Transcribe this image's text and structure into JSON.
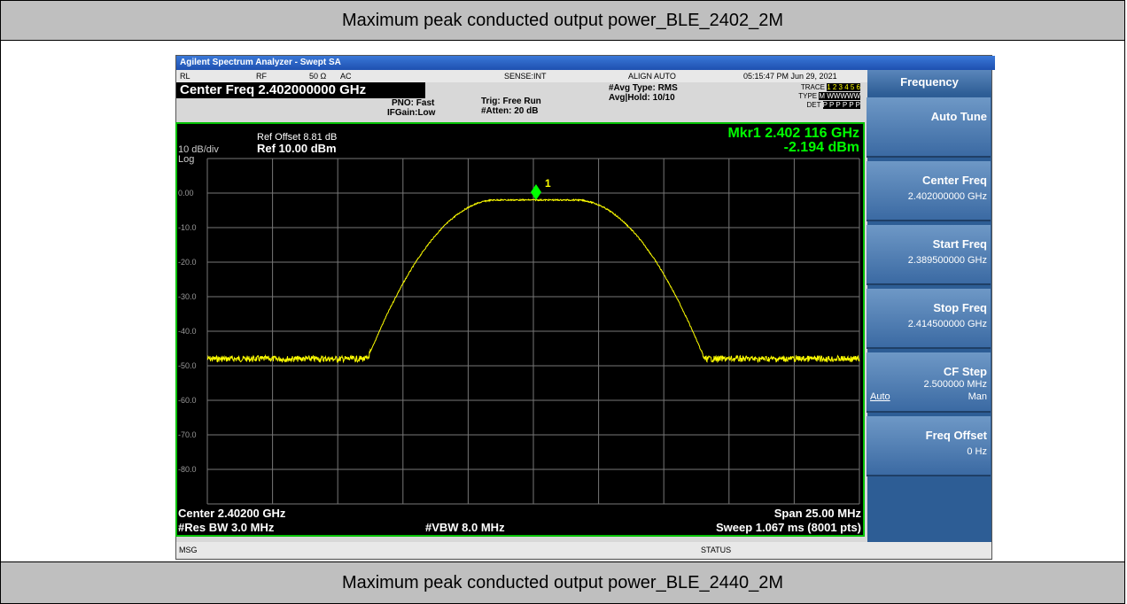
{
  "document": {
    "header": "Maximum peak conducted output power_BLE_2402_2M",
    "footer": "Maximum peak conducted output power_BLE_2440_2M",
    "analyzer": {
      "title_bar": "Agilent Spectrum Analyzer - Swept SA",
      "status_row": [
        "RL",
        "RF",
        "50 Ω",
        "AC",
        "SENSE:INT",
        "ALIGN AUTO",
        "05:15:47 PM Jun 29, 2021"
      ],
      "center_freq": "Center Freq 2.402000000 GHz",
      "pno": "PNO: Fast",
      "ifgain": "IFGain:Low",
      "trig": "Trig: Free Run",
      "atten": "#Atten: 20 dB",
      "avg_type": "#Avg Type: RMS",
      "avg_hold": "Avg|Hold: 10/10",
      "trace_row": {
        "trace": "TRACE",
        "trace_vals": "1 2 3 4 5 6",
        "type": "TYPE",
        "type_vals": "M WWWWW",
        "det": "DET",
        "det_vals": "P P P P P P"
      },
      "ref_offset": "Ref Offset 8.81 dB",
      "ref_level": "Ref 10.00 dBm",
      "scale": "10 dB/div",
      "log": "Log",
      "marker_freq": "Mkr1 2.402 116 GHz",
      "marker_level": "-2.194 dBm",
      "marker_id": "1",
      "y_labels": [
        "0.00",
        "-10.0",
        "-20.0",
        "-30.0",
        "-40.0",
        "-50.0",
        "-60.0",
        "-70.0",
        "-80.0"
      ],
      "center": "Center 2.40200 GHz",
      "span": "Span 25.00 MHz",
      "rbw": "#Res BW 3.0 MHz",
      "vbw": "#VBW 8.0 MHz",
      "sweep": "Sweep  1.067 ms (8001 pts)",
      "msg": "MSG",
      "status": "STATUS",
      "menu": {
        "title": "Frequency",
        "keys": [
          {
            "label": "Auto Tune"
          },
          {
            "label": "Center Freq",
            "value": "2.402000000 GHz"
          },
          {
            "label": "Start Freq",
            "value": "2.389500000 GHz"
          },
          {
            "label": "Stop Freq",
            "value": "2.414500000 GHz"
          },
          {
            "label": "CF Step",
            "value": "2.500000 MHz",
            "auto": "Auto",
            "man": "Man"
          },
          {
            "label": "Freq Offset",
            "value": "0 Hz"
          }
        ]
      }
    }
  }
}
